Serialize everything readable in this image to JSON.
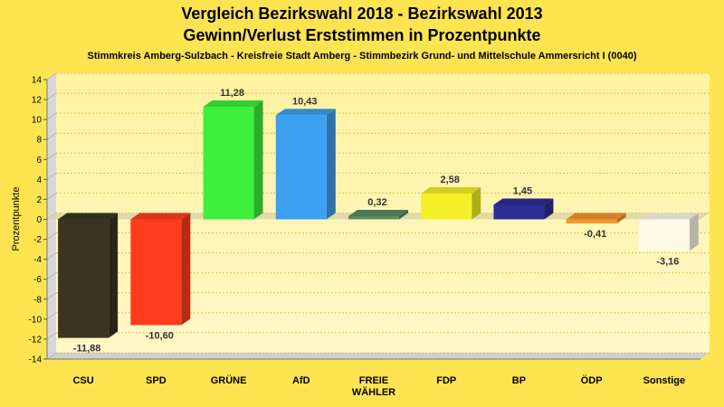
{
  "chart_data": {
    "type": "bar",
    "title": "Vergleich Bezirkswahl 2018 - Bezirkswahl 2013",
    "title2": "Gewinn/Verlust Erststimmen in Prozentpunkte",
    "subtitle": "Stimmkreis Amberg-Sulzbach - Kreisfreie Stadt Amberg - Stimmbezirk Grund- und Mittelschule Ammersricht I (0040)",
    "ylabel": "Prozentpunkte",
    "xlabel": "",
    "ylim": [
      -14,
      14
    ],
    "yticks": [
      14,
      12,
      10,
      8,
      6,
      4,
      2,
      0,
      -2,
      -4,
      -6,
      -8,
      -10,
      -12,
      -14
    ],
    "grid": true,
    "categories": [
      [
        "CSU"
      ],
      [
        "SPD"
      ],
      [
        "GRÜNE"
      ],
      [
        "AfD"
      ],
      [
        "FREIE",
        "WÄHLER"
      ],
      [
        "FDP"
      ],
      [
        "BP"
      ],
      [
        "ÖDP"
      ],
      [
        "Sonstige"
      ]
    ],
    "values": [
      -11.88,
      -10.6,
      11.28,
      10.43,
      0.32,
      2.58,
      1.45,
      -0.41,
      -3.16
    ],
    "value_labels": [
      "-11,88",
      "-10,60",
      "11,28",
      "10,43",
      "0,32",
      "2,58",
      "1,45",
      "-0,41",
      "-3,16"
    ],
    "colors": [
      "#3a3520",
      "#ff3c1e",
      "#3cf03c",
      "#3ca0f0",
      "#5a8a64",
      "#f5f028",
      "#2d2d96",
      "#f59632",
      "#fffae6"
    ]
  }
}
